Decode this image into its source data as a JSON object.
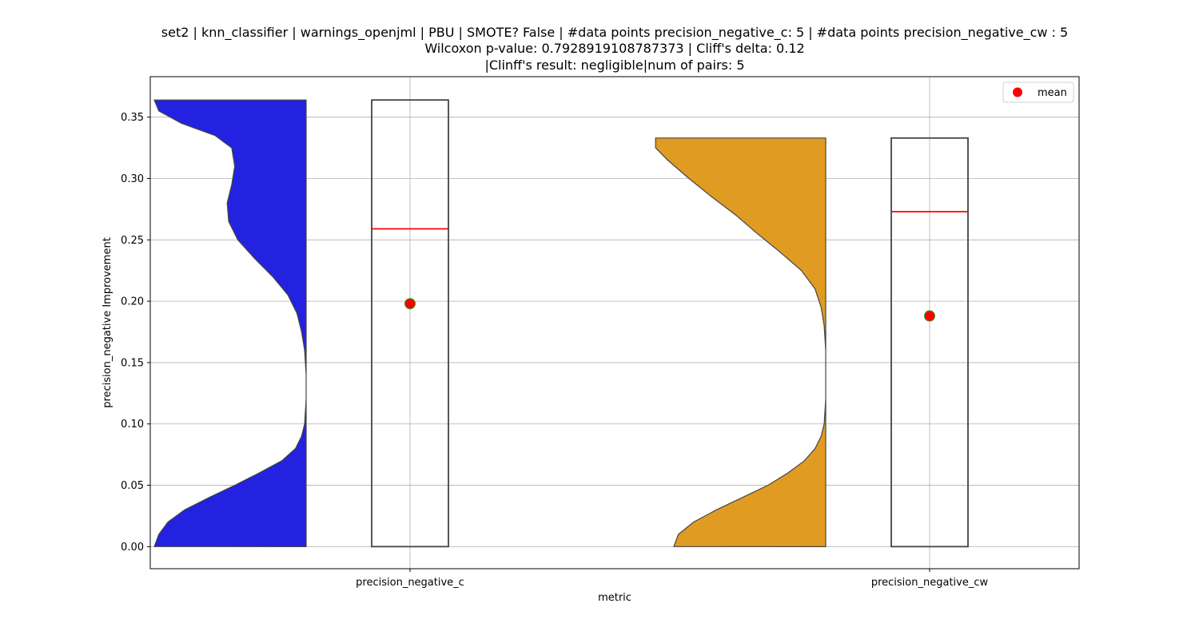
{
  "title_lines": [
    "set2 | knn_classifier | warnings_openjml | PBU | SMOTE? False | #data points precision_negative_c: 5 | #data points precision_negative_cw : 5",
    "Wilcoxon p-value: 0.7928919108787373 | Cliff's delta: 0.12",
    "|Clinff's result: negligible|num of pairs: 5"
  ],
  "chart_data": {
    "type": "violin+box",
    "xlabel": "metric",
    "ylabel": "precision_negative Improvement",
    "categories": [
      "precision_negative_c",
      "precision_negative_cw"
    ],
    "ylim": [
      -0.018,
      0.383
    ],
    "yticks": [
      "0.00",
      "0.05",
      "0.10",
      "0.15",
      "0.20",
      "0.25",
      "0.30",
      "0.35"
    ],
    "grid": true,
    "legend": {
      "position": "top-right",
      "entries": [
        {
          "label": "mean",
          "color": "#ff0000",
          "marker": "circle"
        }
      ]
    },
    "series": [
      {
        "category": "precision_negative_c",
        "violin_color": "#2222e0",
        "min": 0.0,
        "q1": 0.0,
        "median": 0.259,
        "q3": 0.364,
        "max": 0.364,
        "mean": 0.198,
        "density_profile": [
          [
            0.364,
            1.0
          ],
          [
            0.355,
            0.97
          ],
          [
            0.345,
            0.82
          ],
          [
            0.335,
            0.6
          ],
          [
            0.325,
            0.49
          ],
          [
            0.31,
            0.47
          ],
          [
            0.295,
            0.49
          ],
          [
            0.28,
            0.52
          ],
          [
            0.265,
            0.51
          ],
          [
            0.25,
            0.45
          ],
          [
            0.235,
            0.34
          ],
          [
            0.22,
            0.22
          ],
          [
            0.205,
            0.12
          ],
          [
            0.19,
            0.06
          ],
          [
            0.175,
            0.03
          ],
          [
            0.16,
            0.01
          ],
          [
            0.14,
            0.0
          ],
          [
            0.12,
            0.0
          ],
          [
            0.1,
            0.01
          ],
          [
            0.09,
            0.03
          ],
          [
            0.08,
            0.07
          ],
          [
            0.07,
            0.16
          ],
          [
            0.06,
            0.31
          ],
          [
            0.05,
            0.47
          ],
          [
            0.04,
            0.64
          ],
          [
            0.03,
            0.8
          ],
          [
            0.02,
            0.91
          ],
          [
            0.01,
            0.97
          ],
          [
            0.0,
            1.0
          ]
        ]
      },
      {
        "category": "precision_negative_cw",
        "violin_color": "#e09c22",
        "min": 0.0,
        "q1": 0.0,
        "median": 0.273,
        "q3": 0.333,
        "max": 0.333,
        "mean": 0.188,
        "density_profile": [
          [
            0.333,
            1.12
          ],
          [
            0.325,
            1.12
          ],
          [
            0.315,
            1.04
          ],
          [
            0.3,
            0.9
          ],
          [
            0.285,
            0.75
          ],
          [
            0.27,
            0.59
          ],
          [
            0.255,
            0.45
          ],
          [
            0.24,
            0.3
          ],
          [
            0.225,
            0.16
          ],
          [
            0.21,
            0.07
          ],
          [
            0.195,
            0.03
          ],
          [
            0.18,
            0.01
          ],
          [
            0.16,
            0.0
          ],
          [
            0.14,
            0.0
          ],
          [
            0.12,
            0.0
          ],
          [
            0.1,
            0.01
          ],
          [
            0.09,
            0.03
          ],
          [
            0.08,
            0.07
          ],
          [
            0.07,
            0.14
          ],
          [
            0.06,
            0.25
          ],
          [
            0.05,
            0.38
          ],
          [
            0.04,
            0.55
          ],
          [
            0.03,
            0.72
          ],
          [
            0.02,
            0.87
          ],
          [
            0.01,
            0.97
          ],
          [
            0.0,
            1.0
          ]
        ]
      }
    ]
  }
}
